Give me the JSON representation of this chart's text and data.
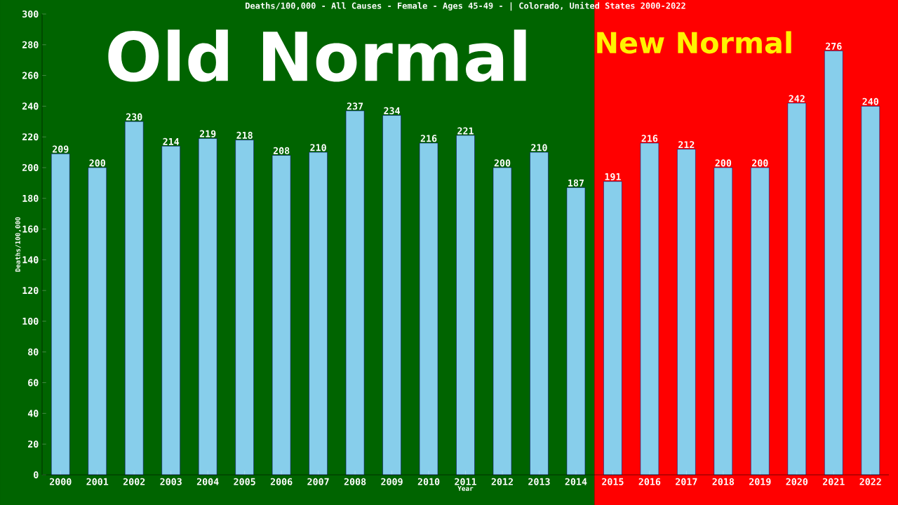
{
  "chart_data": {
    "type": "bar",
    "title": "Deaths/100,000 - All Causes - Female - Ages 45-49 -  | Colorado, United States 2000-2022",
    "xlabel": "Year",
    "ylabel": "Deaths/100,000",
    "categories": [
      "2000",
      "2001",
      "2002",
      "2003",
      "2004",
      "2005",
      "2006",
      "2007",
      "2008",
      "2009",
      "2010",
      "2011",
      "2012",
      "2013",
      "2014",
      "2015",
      "2016",
      "2017",
      "2018",
      "2019",
      "2020",
      "2021",
      "2022"
    ],
    "values": [
      209,
      200,
      230,
      214,
      219,
      218,
      208,
      210,
      237,
      234,
      216,
      221,
      200,
      210,
      187,
      191,
      216,
      212,
      200,
      200,
      242,
      276,
      240
    ],
    "color": "#87ceeb",
    "data_labels": true,
    "ylim": [
      0,
      300
    ],
    "yticks": [
      0,
      20,
      40,
      60,
      80,
      100,
      120,
      140,
      160,
      180,
      200,
      220,
      240,
      260,
      280,
      300
    ],
    "grid": false,
    "bands": [
      {
        "axis": "x",
        "from": "2000",
        "to": "2014",
        "label": "Old Normal",
        "color": "#006400"
      },
      {
        "axis": "x",
        "from": "2015",
        "to": "2022",
        "label": "New Normal",
        "color": "#ff0000"
      }
    ]
  }
}
